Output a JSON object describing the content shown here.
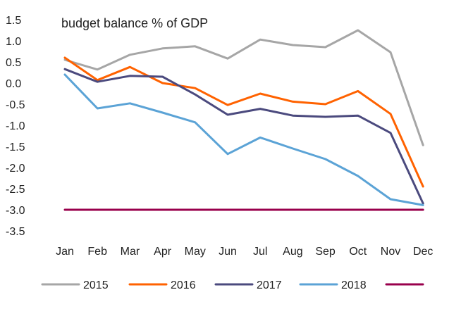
{
  "chart_data": {
    "type": "line",
    "title": "budget balance % of GDP",
    "xlabel": "",
    "ylabel": "",
    "categories": [
      "Jan",
      "Feb",
      "Mar",
      "Apr",
      "May",
      "Jun",
      "Jul",
      "Aug",
      "Sep",
      "Oct",
      "Nov",
      "Dec"
    ],
    "ylim": [
      -3.5,
      1.5
    ],
    "yticks": [
      "1.5",
      "1.0",
      "0.5",
      "0.0",
      "-0.5",
      "-1.0",
      "-1.5",
      "-2.0",
      "-2.5",
      "-3.0",
      "-3.5"
    ],
    "grid": false,
    "legend_position": "bottom",
    "series": [
      {
        "name": "2015",
        "color": "#a6a6a6",
        "values": [
          0.55,
          0.32,
          0.67,
          0.82,
          0.87,
          0.58,
          1.03,
          0.9,
          0.85,
          1.25,
          0.73,
          -1.47
        ]
      },
      {
        "name": "2016",
        "color": "#ff6200",
        "values": [
          0.6,
          0.07,
          0.38,
          0.0,
          -0.12,
          -0.52,
          -0.25,
          -0.44,
          -0.5,
          -0.19,
          -0.73,
          -2.45
        ]
      },
      {
        "name": "2017",
        "color": "#4b4a7e",
        "values": [
          0.33,
          0.03,
          0.17,
          0.15,
          -0.27,
          -0.75,
          -0.61,
          -0.77,
          -0.8,
          -0.77,
          -1.18,
          -2.85
        ]
      },
      {
        "name": "2018",
        "color": "#5ba3d6",
        "values": [
          0.2,
          -0.6,
          -0.48,
          -0.7,
          -0.93,
          -1.68,
          -1.29,
          -1.55,
          -1.8,
          -2.2,
          -2.75,
          -2.89
        ]
      },
      {
        "name": "",
        "color": "#99004c",
        "values": [
          -3.0,
          -3.0,
          -3.0,
          -3.0,
          -3.0,
          -3.0,
          -3.0,
          -3.0,
          -3.0,
          -3.0,
          -3.0,
          -3.0
        ]
      }
    ]
  }
}
